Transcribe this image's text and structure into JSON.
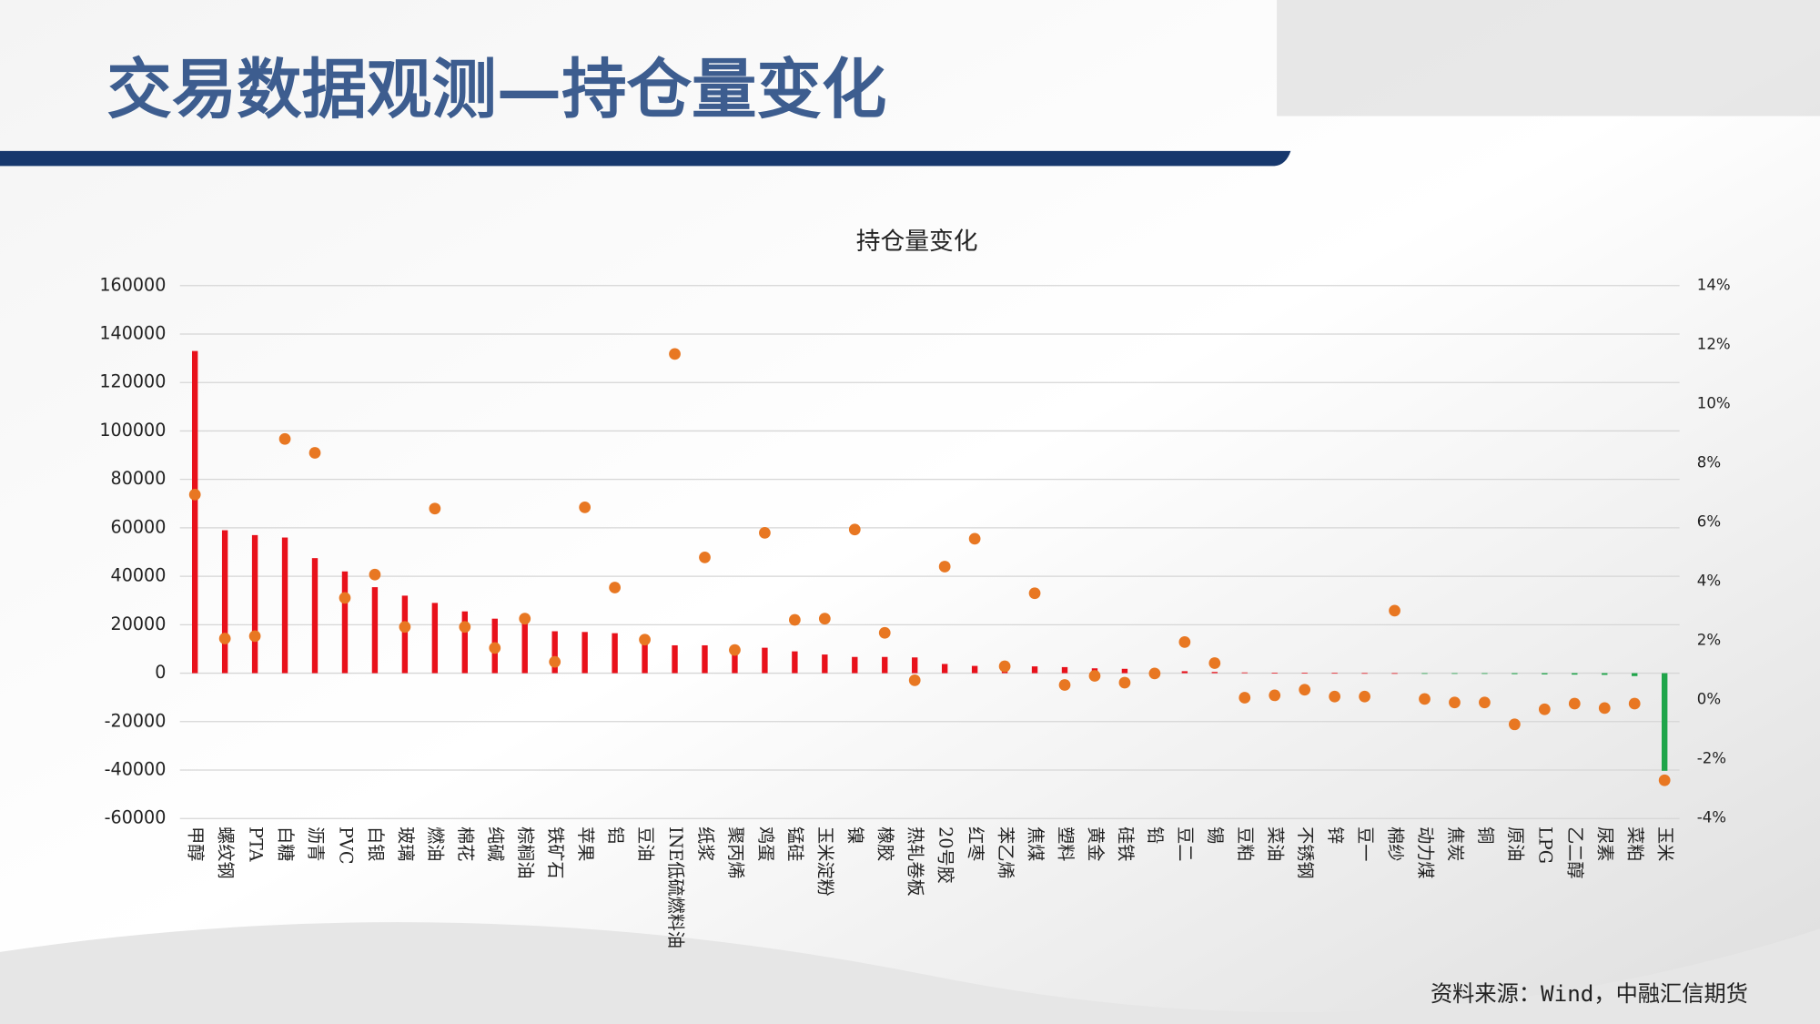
{
  "header": {
    "title": "交易数据观测—持仓量变化"
  },
  "chart_data": {
    "type": "bar",
    "title": "持仓量变化",
    "categories": [
      "甲醇",
      "螺纹钢",
      "PTA",
      "白糖",
      "沥青",
      "PVC",
      "白银",
      "玻璃",
      "燃油",
      "棉花",
      "纯碱",
      "棕榈油",
      "铁矿石",
      "苹果",
      "铝",
      "豆油",
      "INE低硫燃料油",
      "纸浆",
      "聚丙烯",
      "鸡蛋",
      "锰硅",
      "玉米淀粉",
      "镍",
      "橡胶",
      "热轧卷板",
      "20号胶",
      "红枣",
      "苯乙烯",
      "焦煤",
      "塑料",
      "黄金",
      "硅铁",
      "铅",
      "豆二",
      "锡",
      "豆粕",
      "菜油",
      "不锈钢",
      "锌",
      "豆一",
      "棉纱",
      "动力煤",
      "焦炭",
      "铜",
      "原油",
      "LPG",
      "乙二醇",
      "尿素",
      "菜粕",
      "玉米"
    ],
    "series": [
      {
        "type": "bar",
        "color": "#e8111b",
        "negative_color": "#1fa54a",
        "values": [
          133000,
          59000,
          57000,
          56000,
          47500,
          42000,
          35500,
          32000,
          29000,
          25500,
          22500,
          21000,
          17300,
          17000,
          16500,
          15000,
          11500,
          11500,
          11500,
          10500,
          9000,
          7700,
          6700,
          6700,
          6500,
          3800,
          3000,
          2800,
          2800,
          2500,
          2000,
          1800,
          1000,
          800,
          500,
          300,
          200,
          150,
          100,
          50,
          20,
          -100,
          -200,
          -300,
          -400,
          -500,
          -600,
          -700,
          -1200,
          -40300
        ]
      },
      {
        "type": "scatter",
        "axis": "y2",
        "color": "#e87722",
        "values": [
          6.94,
          2.08,
          2.16,
          8.82,
          8.35,
          3.45,
          4.24,
          2.47,
          6.47,
          2.47,
          1.76,
          2.75,
          1.29,
          6.51,
          3.8,
          2.04,
          11.69,
          4.82,
          1.69,
          5.65,
          2.71,
          2.75,
          5.76,
          2.27,
          0.67,
          4.51,
          5.45,
          1.14,
          3.61,
          0.51,
          0.82,
          0.59,
          0.9,
          1.96,
          1.25,
          0.08,
          0.16,
          0.35,
          0.12,
          0.12,
          3.02,
          0.04,
          -0.08,
          -0.08,
          -0.82,
          -0.31,
          -0.12,
          -0.27,
          -0.12,
          -2.71
        ]
      }
    ],
    "ylim": [
      -60000,
      160000
    ],
    "yticks": [
      -60000,
      -40000,
      -20000,
      0,
      20000,
      40000,
      60000,
      80000,
      100000,
      120000,
      140000,
      160000
    ],
    "y2lim": [
      -4,
      14
    ],
    "y2ticks": [
      {
        "value": -4,
        "label": "-4%"
      },
      {
        "value": -2,
        "label": "-2%"
      },
      {
        "value": 0,
        "label": "0%"
      },
      {
        "value": 2,
        "label": "2%"
      },
      {
        "value": 4,
        "label": "4%"
      },
      {
        "value": 6,
        "label": "6%"
      },
      {
        "value": 8,
        "label": "8%"
      },
      {
        "value": 10,
        "label": "10%"
      },
      {
        "value": 12,
        "label": "12%"
      },
      {
        "value": 14,
        "label": "14%"
      }
    ],
    "grid": true
  },
  "footer": {
    "source": "资料来源：Wind，中融汇信期货"
  }
}
